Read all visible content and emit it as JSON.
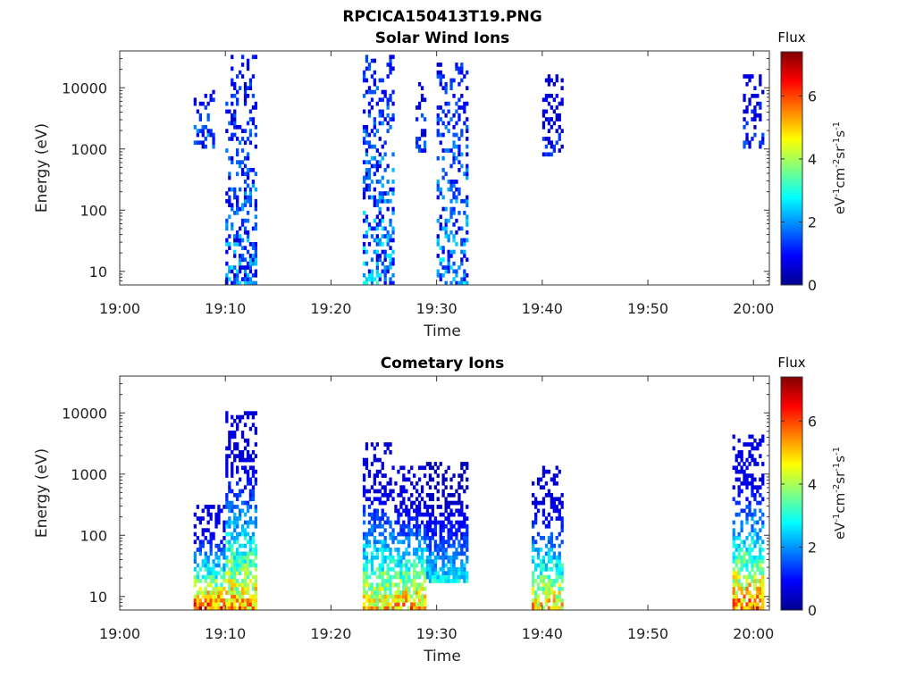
{
  "figure_title": "RPCICA150413T19.PNG",
  "colormap": [
    "#00008f",
    "#0000ff",
    "#0080ff",
    "#00ffff",
    "#80ff80",
    "#ffff00",
    "#ff8000",
    "#ff0000",
    "#800000"
  ],
  "chart_data": [
    {
      "type": "heatmap",
      "title": "Solar Wind Ions",
      "xlabel": "Time",
      "ylabel": "Energy (eV)",
      "y_scale": "log",
      "ylim": [
        6,
        40000
      ],
      "y_ticks": [
        10,
        100,
        1000,
        10000
      ],
      "y_tick_labels": [
        "10",
        "100",
        "1000",
        "10000"
      ],
      "x_ticks": [
        "19:00",
        "19:10",
        "19:20",
        "19:30",
        "19:40",
        "19:50",
        "20:00"
      ],
      "x_tick_minutes": [
        0,
        10,
        20,
        30,
        40,
        50,
        60
      ],
      "xlim_minutes": [
        0,
        61.5
      ],
      "colorbar": {
        "label": "Flux",
        "units": "eV-1cm-2sr-1s-1",
        "range": [
          0,
          7.4
        ],
        "ticks": [
          0,
          2,
          4,
          6
        ]
      },
      "populated_bursts": [
        {
          "t_start": "19:07",
          "t_end": "19:09",
          "e_min": 1000,
          "e_max": 8000,
          "flux_max": 2.5
        },
        {
          "t_start": "19:10",
          "t_end": "19:13",
          "e_min": 6,
          "e_max": 30000,
          "flux_max": 2.8
        },
        {
          "t_start": "19:23",
          "t_end": "19:26",
          "e_min": 6,
          "e_max": 30000,
          "flux_max": 3.2
        },
        {
          "t_start": "19:28",
          "t_end": "19:29",
          "e_min": 800,
          "e_max": 12000,
          "flux_max": 2.2
        },
        {
          "t_start": "19:30",
          "t_end": "19:33",
          "e_min": 6,
          "e_max": 25000,
          "flux_max": 3.0
        },
        {
          "t_start": "19:40",
          "t_end": "19:42",
          "e_min": 700,
          "e_max": 15000,
          "flux_max": 1.6
        },
        {
          "t_start": "19:59",
          "t_end": "20:01",
          "e_min": 1000,
          "e_max": 15000,
          "flux_max": 1.8
        }
      ]
    },
    {
      "type": "heatmap",
      "title": "Cometary Ions",
      "xlabel": "Time",
      "ylabel": "Energy (eV)",
      "y_scale": "log",
      "ylim": [
        6,
        40000
      ],
      "y_ticks": [
        10,
        100,
        1000,
        10000
      ],
      "y_tick_labels": [
        "10",
        "100",
        "1000",
        "10000"
      ],
      "x_ticks": [
        "19:00",
        "19:10",
        "19:20",
        "19:30",
        "19:40",
        "19:50",
        "20:00"
      ],
      "x_tick_minutes": [
        0,
        10,
        20,
        30,
        40,
        50,
        60
      ],
      "xlim_minutes": [
        0,
        61.5
      ],
      "colorbar": {
        "label": "Flux",
        "units": "eV-1cm-2sr-1s-1",
        "range": [
          0,
          7.4
        ],
        "ticks": [
          0,
          2,
          4,
          6
        ]
      },
      "populated_bursts": [
        {
          "t_start": "19:07",
          "t_end": "19:10",
          "e_min": 6,
          "e_max": 300,
          "flux_max": 7.2
        },
        {
          "t_start": "19:10",
          "t_end": "19:13",
          "e_min": 6,
          "e_max": 10000,
          "flux_max": 6.5
        },
        {
          "t_start": "19:23",
          "t_end": "19:26",
          "e_min": 6,
          "e_max": 3000,
          "flux_max": 6.0
        },
        {
          "t_start": "19:26",
          "t_end": "19:29",
          "e_min": 6,
          "e_max": 1200,
          "flux_max": 6.5
        },
        {
          "t_start": "19:29",
          "t_end": "19:33",
          "e_min": 15,
          "e_max": 1500,
          "flux_max": 3.5
        },
        {
          "t_start": "19:39",
          "t_end": "19:42",
          "e_min": 6,
          "e_max": 1200,
          "flux_max": 6.2
        },
        {
          "t_start": "19:58",
          "t_end": "20:01",
          "e_min": 6,
          "e_max": 4000,
          "flux_max": 7.0
        }
      ]
    }
  ]
}
